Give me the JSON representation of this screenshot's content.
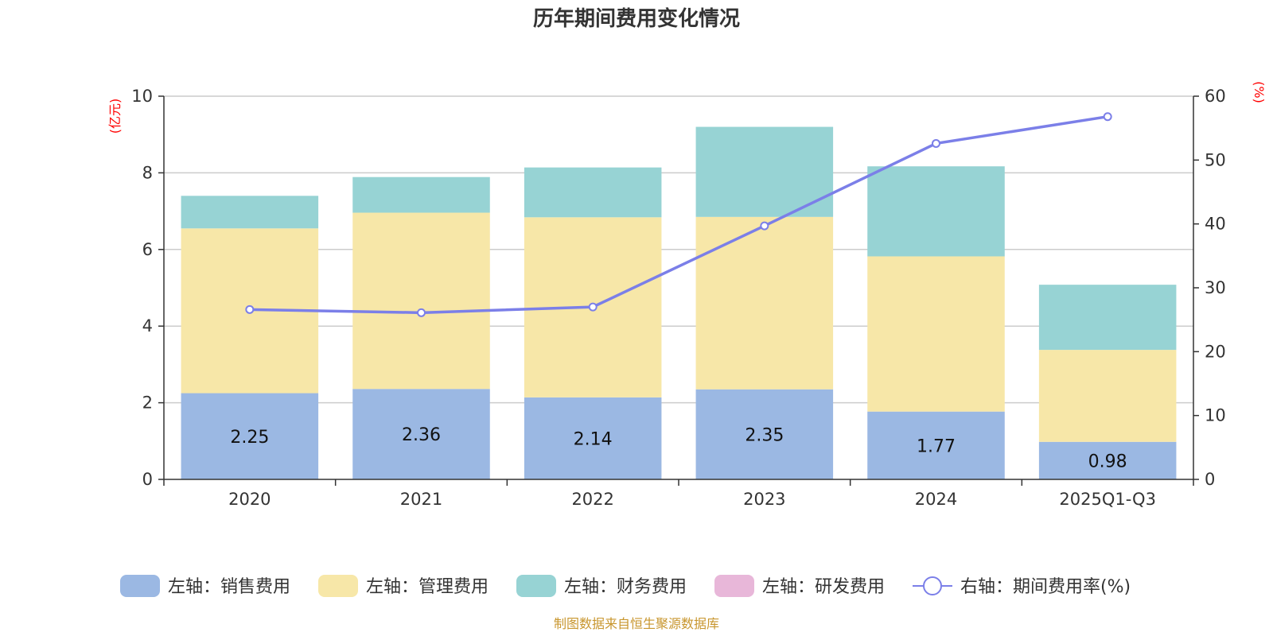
{
  "chart_data": {
    "type": "bar",
    "stacked": true,
    "title": "历年期间费用变化情况",
    "categories": [
      "2020",
      "2021",
      "2022",
      "2023",
      "2024",
      "2025Q1-Q3"
    ],
    "left_axis": {
      "unit": "(亿元)",
      "ylim": [
        0,
        10
      ],
      "ticks": [
        "0",
        "2",
        "4",
        "6",
        "8",
        "10"
      ]
    },
    "right_axis": {
      "unit": "(%)",
      "ylim": [
        0,
        60
      ],
      "ticks": [
        "0",
        "10",
        "20",
        "30",
        "40",
        "50",
        "60"
      ]
    },
    "series": [
      {
        "name": "左轴：销售费用",
        "axis": "left",
        "type": "bar",
        "color": "#9bb8e3",
        "values": [
          2.25,
          2.36,
          2.14,
          2.35,
          1.77,
          0.98
        ],
        "labels": [
          "2.25",
          "2.36",
          "2.14",
          "2.35",
          "1.77",
          "0.98"
        ]
      },
      {
        "name": "左轴：管理费用",
        "axis": "left",
        "type": "bar",
        "color": "#f7e7a8",
        "values": [
          4.3,
          4.6,
          4.7,
          4.5,
          4.05,
          2.4
        ]
      },
      {
        "name": "左轴：财务费用",
        "axis": "left",
        "type": "bar",
        "color": "#97d3d4",
        "values": [
          0.85,
          0.93,
          1.3,
          2.35,
          2.35,
          1.7
        ]
      },
      {
        "name": "左轴：研发费用",
        "axis": "left",
        "type": "bar",
        "color": "#e8b7d9",
        "values": [
          0,
          0,
          0,
          0,
          0,
          0
        ]
      },
      {
        "name": "右轴：期间费用率(%)",
        "axis": "right",
        "type": "line",
        "color": "#7b7fe8",
        "values": [
          26.6,
          26.1,
          27.0,
          39.7,
          52.6,
          56.8
        ]
      }
    ],
    "grid": true,
    "legend_position": "bottom"
  },
  "source_note": "制图数据来自恒生聚源数据库"
}
